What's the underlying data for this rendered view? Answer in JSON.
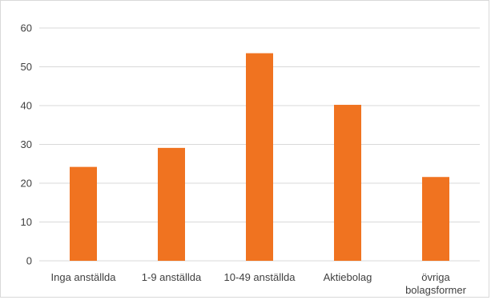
{
  "chart_data": {
    "type": "bar",
    "categories": [
      "Inga anställda",
      "1-9 anställda",
      "10-49 anställda",
      "Aktiebolag",
      [
        "övriga",
        "bolagsformer"
      ]
    ],
    "values": [
      24.2,
      29.1,
      53.5,
      40.2,
      21.6
    ],
    "title": "",
    "xlabel": "",
    "ylabel": "",
    "ylim": [
      0,
      60
    ],
    "yticks": [
      "0",
      "10",
      "20",
      "30",
      "40",
      "50",
      "60"
    ],
    "grid": true,
    "legend": "none",
    "bar_color": "#F07320",
    "grid_color": "#d9d9d9"
  }
}
